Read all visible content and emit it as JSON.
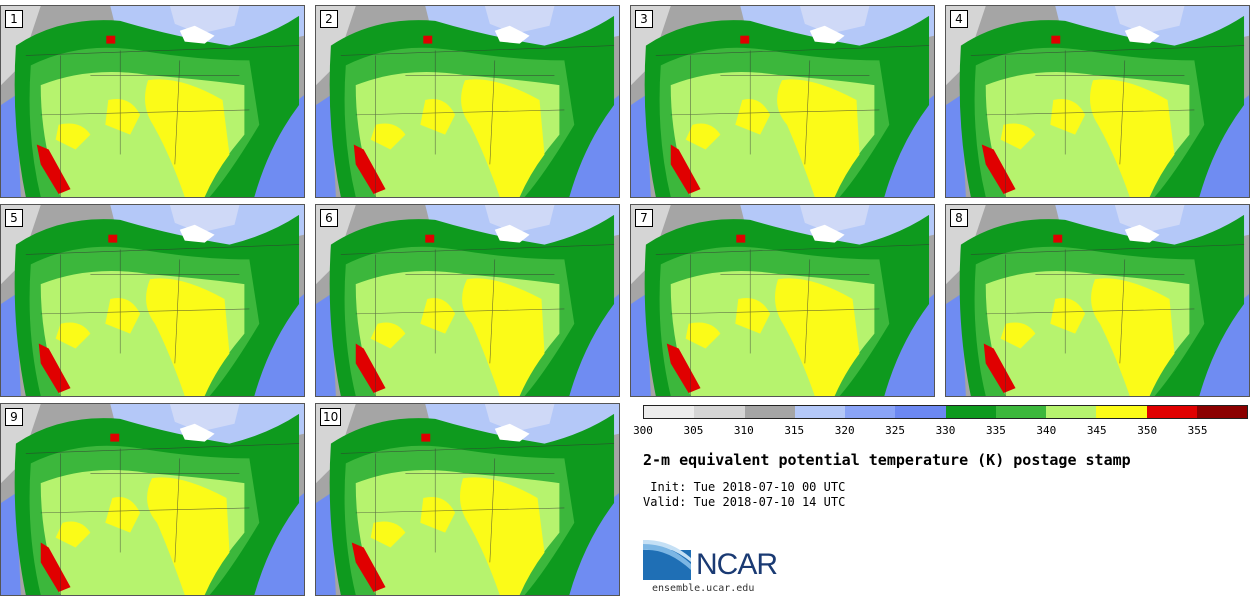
{
  "title": "2-m equivalent potential temperature (K) postage stamp",
  "init": " Init: Tue 2018-07-10 00 UTC",
  "valid": "Valid: Tue 2018-07-10 14 UTC",
  "site": "ensemble.ucar.edu",
  "logo_text": "NCAR",
  "members": [
    "1",
    "2",
    "3",
    "4",
    "5",
    "6",
    "7",
    "8",
    "9",
    "10"
  ],
  "colorbar": {
    "ticks": [
      "300",
      "305",
      "310",
      "315",
      "320",
      "325",
      "330",
      "335",
      "340",
      "345",
      "350",
      "355"
    ],
    "colors": [
      "#ececec",
      "#d5d5d5",
      "#a5a5a5",
      "#b4c8f8",
      "#8aa4f7",
      "#6c88f2",
      "#0e9a1e",
      "#3cb73c",
      "#b6f36e",
      "#fbfb18",
      "#e00000",
      "#8b0000"
    ]
  },
  "map_colors": {
    "water": "#6f8cf2",
    "cold": "#a5a5a5",
    "coldlight": "#d5d5d5",
    "cool": "#b4c8f8",
    "green_dark": "#0e9a1e",
    "green": "#3cb73c",
    "lightgreen": "#b6f36e",
    "yellow": "#fbfb18",
    "red": "#e00000"
  }
}
